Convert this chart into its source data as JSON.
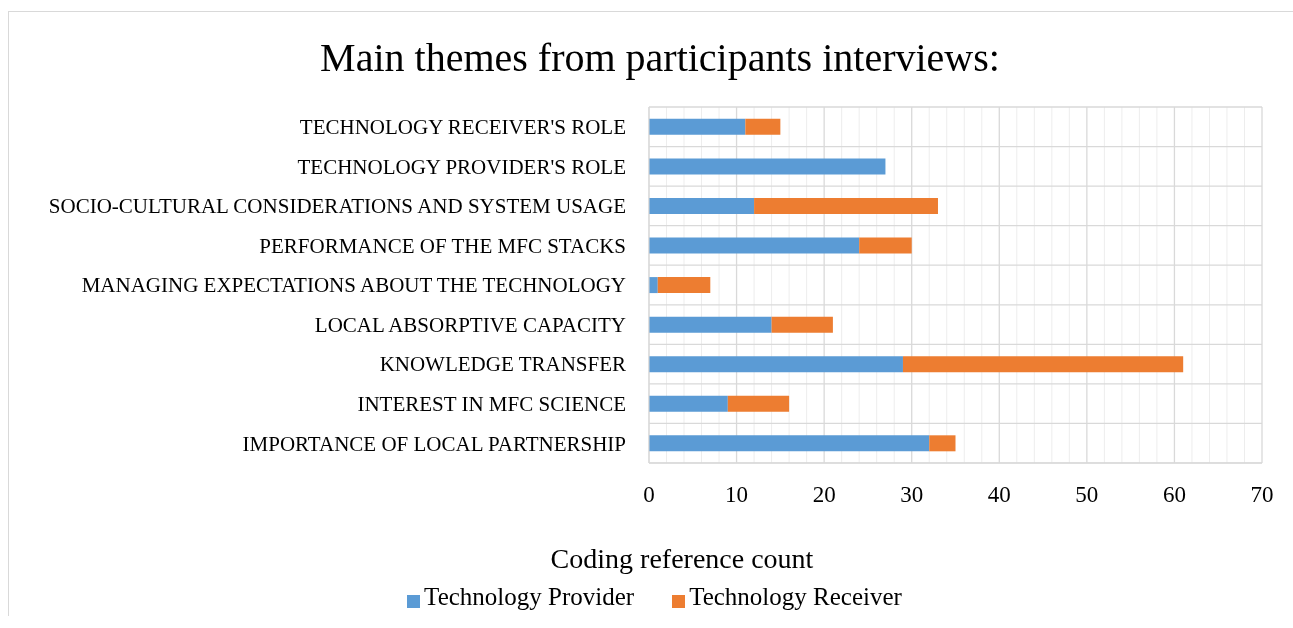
{
  "chart_data": {
    "type": "bar",
    "orientation": "horizontal",
    "stacked": true,
    "title": "Main themes from participants interviews:",
    "xlabel": "Coding reference count",
    "categories": [
      "TECHNOLOGY RECEIVER'S ROLE",
      "TECHNOLOGY PROVIDER'S ROLE",
      "SOCIO-CULTURAL CONSIDERATIONS AND SYSTEM USAGE",
      "PERFORMANCE OF THE MFC STACKS",
      "MANAGING EXPECTATIONS ABOUT THE TECHNOLOGY",
      "LOCAL ABSORPTIVE CAPACITY",
      "KNOWLEDGE TRANSFER",
      "INTEREST IN MFC SCIENCE",
      "IMPORTANCE OF LOCAL PARTNERSHIP"
    ],
    "series": [
      {
        "name": "Technology Provider",
        "color": "#5b9bd5",
        "values": [
          11,
          27,
          12,
          24,
          1,
          14,
          29,
          9,
          32
        ]
      },
      {
        "name": "Technology Receiver",
        "color": "#ed7d31",
        "values": [
          4,
          0,
          21,
          6,
          6,
          7,
          32,
          7,
          3
        ]
      }
    ],
    "xlim": [
      0,
      70
    ],
    "xticks": [
      0,
      {
        "value": 2,
        "label": null
      },
      {
        "value": 4,
        "label": null
      },
      {
        "value": 6,
        "label": null
      },
      {
        "value": 8,
        "label": null
      },
      10,
      {
        "value": 12,
        "label": null
      },
      {
        "value": 14,
        "label": null
      },
      {
        "value": 16,
        "label": null
      },
      {
        "value": 18,
        "label": null
      },
      20,
      {
        "value": 22,
        "label": null
      },
      {
        "value": 24,
        "label": null
      },
      {
        "value": 26,
        "label": null
      },
      {
        "value": 28,
        "label": null
      },
      30,
      {
        "value": 32,
        "label": null
      },
      {
        "value": 34,
        "label": null
      },
      {
        "value": 36,
        "label": null
      },
      {
        "value": 38,
        "label": null
      },
      40,
      {
        "value": 42,
        "label": null
      },
      {
        "value": 44,
        "label": null
      },
      {
        "value": 46,
        "label": null
      },
      {
        "value": 48,
        "label": null
      },
      50,
      {
        "value": 52,
        "label": null
      },
      {
        "value": 54,
        "label": null
      },
      {
        "value": 56,
        "label": null
      },
      {
        "value": 58,
        "label": null
      },
      60,
      {
        "value": 62,
        "label": null
      },
      {
        "value": 64,
        "label": null
      },
      {
        "value": 66,
        "label": null
      },
      {
        "value": 68,
        "label": null
      },
      70
    ],
    "grid": true,
    "legend": "bottom"
  }
}
